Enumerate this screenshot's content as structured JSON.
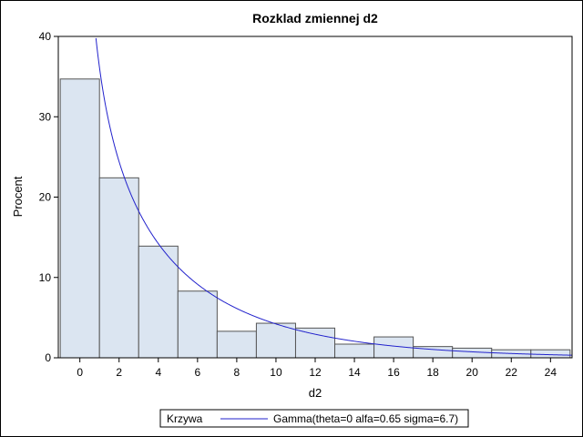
{
  "chart_data": {
    "type": "histogram",
    "title": "Rozklad zmiennej d2",
    "xlabel": "d2",
    "ylabel": "Procent",
    "xlim": [
      -1.1,
      25.1
    ],
    "ylim": [
      0,
      40
    ],
    "x_ticks": [
      0,
      2,
      4,
      6,
      8,
      10,
      12,
      14,
      16,
      18,
      20,
      22,
      24
    ],
    "y_ticks": [
      0,
      10,
      20,
      30,
      40
    ],
    "bin_width": 2,
    "bins": [
      {
        "start": -1,
        "end": 1,
        "value": 34.7
      },
      {
        "start": 1,
        "end": 3,
        "value": 22.4
      },
      {
        "start": 3,
        "end": 5,
        "value": 13.9
      },
      {
        "start": 5,
        "end": 7,
        "value": 8.3
      },
      {
        "start": 7,
        "end": 9,
        "value": 3.3
      },
      {
        "start": 9,
        "end": 11,
        "value": 4.3
      },
      {
        "start": 11,
        "end": 13,
        "value": 3.7
      },
      {
        "start": 13,
        "end": 15,
        "value": 1.7
      },
      {
        "start": 15,
        "end": 17,
        "value": 2.6
      },
      {
        "start": 17,
        "end": 19,
        "value": 1.4
      },
      {
        "start": 19,
        "end": 21,
        "value": 1.2
      },
      {
        "start": 21,
        "end": 23,
        "value": 1.0
      },
      {
        "start": 23,
        "end": 25,
        "value": 1.0
      }
    ],
    "curve": {
      "name": "Gamma(theta=0 alfa=0.65 sigma=6.7)",
      "theta": 0,
      "alpha": 0.65,
      "sigma": 6.7,
      "color": "#2222cc"
    },
    "legend": {
      "title": "Krzywa",
      "position": "bottom-center"
    },
    "colors": {
      "bar_fill": "#dbe5f1",
      "bar_stroke": "#555555",
      "curve": "#2222cc"
    }
  }
}
